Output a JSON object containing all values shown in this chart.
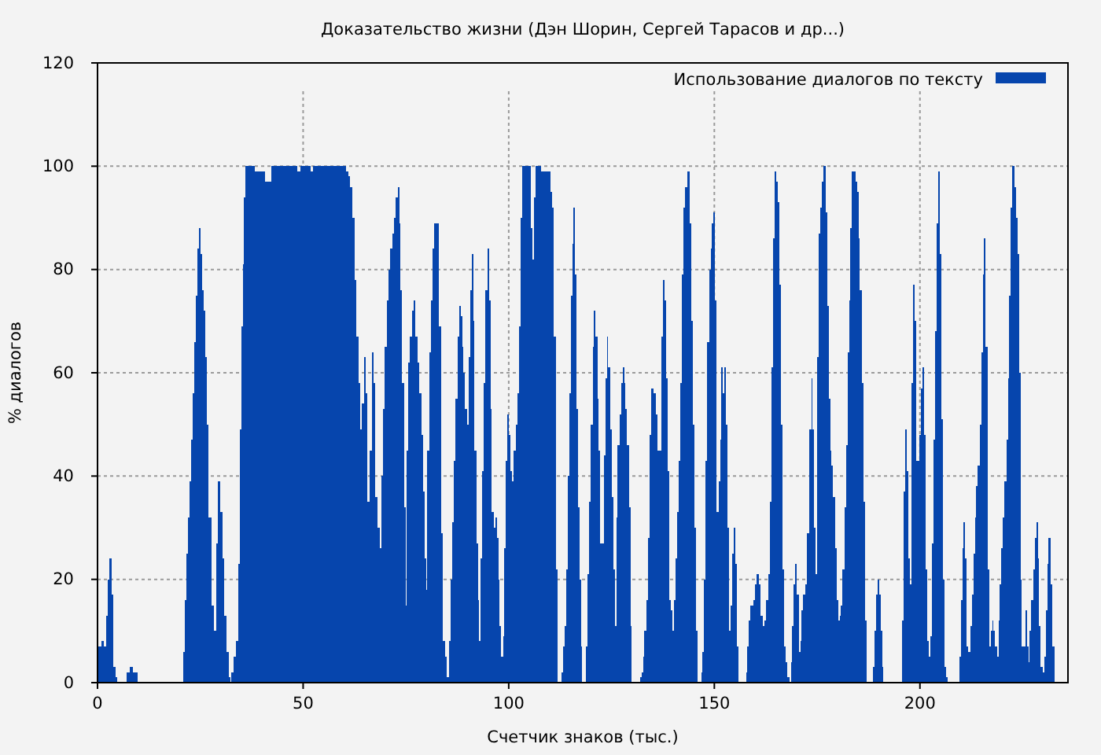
{
  "chart_data": {
    "type": "area",
    "title": "Доказательство жизни (Дэн Шорин, Сергей Тарасов и др...)",
    "xlabel": "Счетчик знаков (тыс.)",
    "ylabel": "% диалогов",
    "xlim": [
      0,
      236
    ],
    "xticks": [
      0,
      50,
      100,
      150,
      200
    ],
    "ylim": [
      0,
      120
    ],
    "yticks": [
      0,
      20,
      40,
      60,
      80,
      100,
      120
    ],
    "grid": true,
    "legend": "top right",
    "x": [
      0,
      0.5,
      1.3,
      1.8,
      2.3,
      2.7,
      3.2,
      3.6,
      4.1,
      4.6,
      5,
      6.8,
      7.4,
      8.2,
      9.2,
      10.2,
      20.7,
      20.9,
      21.4,
      21.8,
      22.2,
      22.6,
      22.9,
      23.3,
      23.7,
      24.1,
      24.5,
      24.9,
      25.2,
      25.6,
      26,
      26.4,
      26.8,
      27.3,
      28,
      28.6,
      29.1,
      29.6,
      30.1,
      30.6,
      31.1,
      31.6,
      32.1,
      32.4,
      32.8,
      33.4,
      33.9,
      34.4,
      34.8,
      35.2,
      35.5,
      35.7,
      36.1,
      37.5,
      39,
      40.3,
      41.3,
      42.1,
      42.6,
      48.3,
      48.9,
      49.6,
      51.6,
      52.1,
      52.7,
      60.2,
      60.7,
      61.2,
      61.7,
      62.2,
      62.7,
      63.2,
      63.7,
      64.1,
      64.5,
      65,
      65.4,
      65.9,
      66.4,
      66.9,
      67.3,
      67.8,
      68.5,
      69,
      69.2,
      69.7,
      70.1,
      70.5,
      71,
      71.4,
      71.9,
      72.3,
      72.8,
      73.2,
      73.5,
      73.9,
      74.3,
      74.7,
      75.1,
      75.3,
      75.7,
      76.2,
      76.7,
      77,
      77.5,
      78,
      78.5,
      78.9,
      79.3,
      79.7,
      80,
      80.4,
      80.9,
      81.3,
      81.7,
      82.1,
      82.9,
      83.2,
      83.8,
      84.3,
      84.7,
      85.1,
      85.8,
      86.1,
      86.4,
      86.8,
      87.3,
      87.7,
      88.1,
      88.5,
      88.8,
      89.2,
      89.6,
      90,
      90.4,
      90.8,
      91.2,
      91.5,
      91.9,
      92.3,
      92.7,
      93,
      93.3,
      93.7,
      94.1,
      94.6,
      95,
      95.4,
      95.7,
      96.1,
      96.5,
      96.9,
      97.3,
      97.6,
      98,
      98.4,
      98.8,
      99.1,
      99.5,
      99.9,
      100.3,
      100.7,
      101,
      101.5,
      102,
      102.4,
      102.8,
      103.1,
      103.5,
      105.2,
      105.6,
      106,
      106.3,
      106.7,
      107.5,
      108.2,
      109.9,
      110.3,
      110.7,
      111.2,
      111.7,
      112.1,
      112.8,
      113,
      113.4,
      113.7,
      114.1,
      114.5,
      115,
      115.4,
      115.7,
      115.9,
      116.3,
      116.6,
      117,
      117.4,
      117.8,
      118,
      118.7,
      118.9,
      119.4,
      119.8,
      120.2,
      120.6,
      120.9,
      121.4,
      121.7,
      122.1,
      122.5,
      122.9,
      123.3,
      123.7,
      124,
      124.4,
      124.8,
      125.2,
      125.6,
      126,
      126.3,
      126.7,
      127.1,
      127.5,
      127.9,
      128.2,
      128.6,
      129,
      129.4,
      129.8,
      130,
      131.8,
      132.1,
      132.5,
      132.8,
      133.2,
      133.6,
      134,
      134.4,
      134.8,
      135.1,
      135.5,
      135.9,
      136.4,
      136.9,
      137.3,
      137.7,
      138.1,
      138.4,
      138.8,
      139.2,
      139.6,
      139.9,
      140.3,
      140.7,
      141.1,
      141.5,
      141.9,
      142.3,
      142.6,
      143.1,
      143.8,
      144.2,
      144.6,
      144.9,
      145.3,
      145.7,
      146.1,
      146.7,
      146.9,
      147.3,
      147.7,
      148.1,
      148.5,
      148.9,
      149.3,
      149.6,
      150,
      150.4,
      150.8,
      151.2,
      151.6,
      151.9,
      152.3,
      152.7,
      153,
      153.4,
      153.8,
      154.2,
      154.6,
      154.9,
      155.3,
      155.7,
      156,
      157.6,
      157.8,
      158.2,
      158.6,
      158.9,
      159.3,
      159.7,
      160.1,
      160.6,
      161.1,
      161.5,
      161.9,
      162.4,
      162.9,
      163.3,
      163.7,
      164.1,
      164.4,
      164.8,
      165.2,
      165.6,
      166,
      166.4,
      166.7,
      167.1,
      167.6,
      168,
      168.5,
      168.7,
      169.1,
      169.5,
      169.9,
      170.3,
      170.7,
      171.1,
      171.4,
      171.8,
      172.3,
      172.9,
      173.4,
      173.8,
      174,
      174.4,
      174.8,
      175.1,
      175.5,
      175.9,
      176.3,
      176.8,
      177.2,
      177.6,
      178,
      178.3,
      178.7,
      179.1,
      179.5,
      179.9,
      180.3,
      180.6,
      181,
      181.4,
      181.8,
      182.2,
      182.6,
      182.9,
      183.3,
      183.7,
      184.1,
      184.5,
      184.9,
      185.2,
      185.6,
      186,
      186.4,
      186.8,
      187.1,
      188.5,
      188.7,
      189.1,
      189.5,
      189.9,
      190.2,
      190.6,
      191,
      191.2,
      195.5,
      195.8,
      196.2,
      196.5,
      196.9,
      197.3,
      197.7,
      198.1,
      198.5,
      198.9,
      199.2,
      199.6,
      200,
      200.4,
      200.8,
      201.1,
      201.5,
      201.9,
      202.3,
      202.7,
      203.1,
      203.5,
      203.8,
      204.2,
      204.6,
      205,
      205.3,
      205.7,
      206.1,
      206.5,
      206.8,
      209.4,
      209.7,
      210.1,
      210.5,
      210.8,
      211.2,
      211.6,
      212,
      212.4,
      212.8,
      213.2,
      213.5,
      213.9,
      214.3,
      214.7,
      215.1,
      215.4,
      215.8,
      216.2,
      216.6,
      217,
      217.4,
      217.7,
      218.1,
      218.5,
      218.9,
      219.3,
      219.6,
      220,
      220.4,
      220.8,
      221.2,
      221.6,
      221.9,
      222.3,
      222.7,
      223.1,
      223.5,
      223.9,
      224.3,
      224.6,
      225,
      225.4,
      225.8,
      226.2,
      226.5,
      226.9,
      227.3,
      227.7,
      228.1,
      228.5,
      228.8,
      229.2,
      229.6,
      230,
      230.4,
      230.8,
      231.1,
      231.5,
      231.9,
      232.3,
      232.7,
      232.9
    ],
    "series": [
      {
        "name": "Использование диалогов по тексту",
        "color": "#0645ad",
        "values": [
          5,
          7,
          8,
          7,
          13,
          20,
          24,
          17,
          3,
          1,
          0,
          0,
          2,
          3,
          2,
          0,
          0,
          6,
          16,
          25,
          32,
          39,
          47,
          56,
          66,
          75,
          84,
          88,
          83,
          76,
          72,
          63,
          50,
          32,
          15,
          10,
          27,
          39,
          33,
          24,
          13,
          6,
          1,
          0,
          2,
          5,
          8,
          23,
          49,
          69,
          81,
          94,
          100,
          100,
          99,
          99,
          97,
          97,
          100,
          100,
          99,
          100,
          100,
          99,
          100,
          100,
          99,
          98,
          96,
          90,
          78,
          67,
          58,
          49,
          54,
          63,
          56,
          35,
          45,
          64,
          58,
          36,
          30,
          26,
          40,
          53,
          65,
          74,
          80,
          84,
          87,
          90,
          94,
          96,
          89,
          76,
          58,
          34,
          15,
          45,
          62,
          67,
          72,
          74,
          67,
          62,
          56,
          48,
          37,
          24,
          18,
          45,
          64,
          74,
          84,
          89,
          89,
          69,
          29,
          8,
          5,
          1,
          8,
          20,
          31,
          43,
          55,
          67,
          73,
          71,
          65,
          60,
          53,
          50,
          63,
          76,
          83,
          70,
          45,
          27,
          16,
          8,
          24,
          41,
          58,
          76,
          84,
          74,
          53,
          33,
          30,
          32,
          28,
          20,
          11,
          5,
          9,
          26,
          43,
          52,
          48,
          41,
          39,
          45,
          50,
          56,
          69,
          90,
          100,
          100,
          88,
          82,
          94,
          100,
          100,
          99,
          99,
          95,
          92,
          67,
          22,
          0,
          0,
          2,
          7,
          11,
          22,
          40,
          56,
          75,
          85,
          92,
          79,
          53,
          34,
          20,
          7,
          0,
          0,
          7,
          21,
          35,
          50,
          65,
          72,
          67,
          55,
          45,
          27,
          27,
          44,
          59,
          67,
          61,
          49,
          36,
          22,
          11,
          32,
          46,
          52,
          58,
          61,
          58,
          53,
          46,
          34,
          11,
          0,
          0,
          1,
          2,
          5,
          10,
          16,
          28,
          48,
          57,
          57,
          56,
          52,
          45,
          45,
          67,
          78,
          74,
          59,
          41,
          16,
          14,
          10,
          16,
          24,
          33,
          43,
          58,
          79,
          92,
          96,
          99,
          89,
          70,
          50,
          30,
          10,
          0,
          0,
          2,
          6,
          20,
          43,
          66,
          80,
          84,
          89,
          91,
          74,
          33,
          39,
          47,
          61,
          56,
          61,
          50,
          30,
          10,
          15,
          25,
          30,
          23,
          7,
          0,
          0,
          2,
          7,
          12,
          15,
          15,
          16,
          19,
          21,
          19,
          13,
          11,
          12,
          16,
          21,
          35,
          61,
          86,
          99,
          97,
          93,
          77,
          50,
          22,
          7,
          4,
          1,
          0,
          4,
          11,
          19,
          23,
          17,
          6,
          8,
          14,
          17,
          19,
          29,
          49,
          59,
          49,
          30,
          21,
          63,
          87,
          92,
          97,
          100,
          91,
          73,
          55,
          45,
          42,
          36,
          26,
          16,
          12,
          13,
          15,
          22,
          34,
          46,
          64,
          74,
          88,
          99,
          99,
          97,
          95,
          86,
          76,
          58,
          35,
          12,
          0,
          0,
          3,
          10,
          17,
          20,
          17,
          10,
          3,
          0,
          0,
          12,
          37,
          49,
          41,
          24,
          19,
          58,
          77,
          70,
          43,
          43,
          48,
          57,
          61,
          48,
          22,
          8,
          5,
          9,
          27,
          47,
          68,
          89,
          99,
          83,
          51,
          20,
          3,
          1,
          0,
          0,
          5,
          16,
          26,
          31,
          24,
          7,
          6,
          11,
          17,
          25,
          32,
          38,
          42,
          50,
          64,
          79,
          86,
          65,
          22,
          7,
          10,
          12,
          10,
          7,
          5,
          12,
          19,
          26,
          32,
          39,
          47,
          59,
          75,
          92,
          100,
          96,
          90,
          83,
          60,
          20,
          7,
          7,
          14,
          7,
          4,
          10,
          16,
          22,
          28,
          31,
          24,
          11,
          3,
          2,
          5,
          14,
          23,
          28,
          19,
          7,
          7,
          0
        ]
      }
    ]
  }
}
